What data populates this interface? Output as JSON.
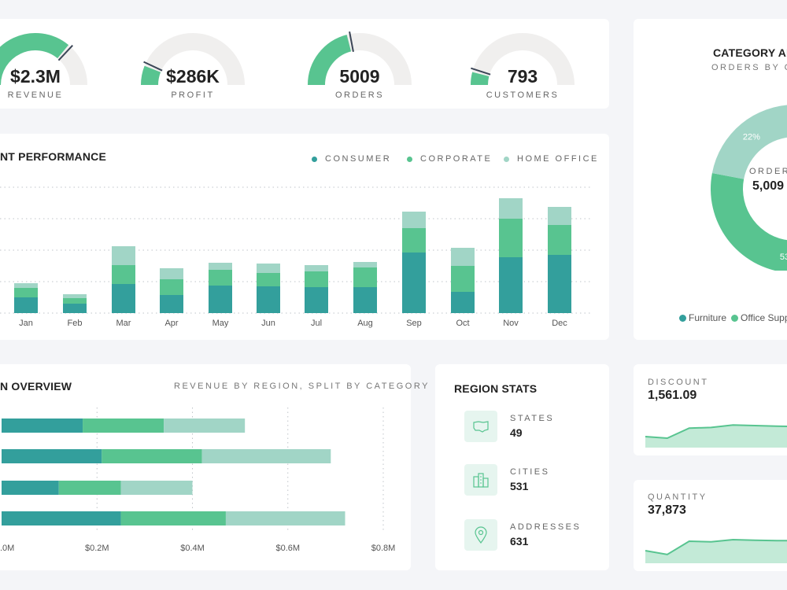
{
  "kpis": [
    {
      "value": "$2.3M",
      "label": "REVENUE",
      "fraction": 0.72
    },
    {
      "value": "$286K",
      "label": "PROFIT",
      "fraction": 0.12
    },
    {
      "value": "5009",
      "label": "ORDERS",
      "fraction": 0.42
    },
    {
      "value": "793",
      "label": "CUSTOMERS",
      "fraction": 0.08
    }
  ],
  "category": {
    "title": "CATEGORY AN",
    "subtitle": "ORDERS BY CA",
    "center_label": "ORDERS",
    "center_value": "5,009",
    "legend": [
      "Furniture",
      "Office Suppli"
    ]
  },
  "segment": {
    "title": "NT PERFORMANCE",
    "legend": [
      "CONSUMER",
      "CORPORATE",
      "HOME OFFICE"
    ]
  },
  "region": {
    "title": "N OVERVIEW",
    "subtitle": "REVENUE BY REGION,  SPLIT BY CATEGORY",
    "axis_ticks": [
      ".0M",
      "$0.2M",
      "$0.4M",
      "$0.6M",
      "$0.8M"
    ]
  },
  "region_stats": {
    "title": "REGION STATS",
    "items": [
      {
        "label": "STATES",
        "value": "49",
        "icon": "map-icon"
      },
      {
        "label": "CITIES",
        "value": "531",
        "icon": "buildings-icon"
      },
      {
        "label": "ADDRESSES",
        "value": "631",
        "icon": "location-pin-icon"
      }
    ]
  },
  "discount": {
    "label": "DISCOUNT",
    "value": "1,561.09",
    "trend": [
      0.35,
      0.3,
      0.62,
      0.64,
      0.72,
      0.7,
      0.68,
      0.67
    ]
  },
  "quantity": {
    "label": "QUANTITY",
    "value": "37,873",
    "trend": [
      0.4,
      0.28,
      0.7,
      0.68,
      0.75,
      0.73,
      0.72,
      0.72
    ]
  },
  "colors": {
    "consumer": "#339f9c",
    "corporate": "#58c490",
    "home_office": "#a1d5c6",
    "gauge_track": "#f0efee",
    "accent": "#58c490"
  },
  "chart_data": [
    {
      "type": "bar",
      "title": "NT PERFORMANCE",
      "stacked": true,
      "categories": [
        "Jan",
        "Feb",
        "Mar",
        "Apr",
        "May",
        "Jun",
        "Jul",
        "Aug",
        "Sep",
        "Oct",
        "Nov",
        "Dec"
      ],
      "series": [
        {
          "name": "CONSUMER",
          "values": [
            20,
            12,
            37,
            23,
            35,
            34,
            33,
            33,
            77,
            27,
            71,
            74
          ]
        },
        {
          "name": "CORPORATE",
          "values": [
            12,
            7,
            24,
            20,
            20,
            17,
            20,
            25,
            31,
            33,
            49,
            38
          ]
        },
        {
          "name": "HOME OFFICE",
          "values": [
            6,
            5,
            24,
            14,
            9,
            12,
            8,
            7,
            21,
            23,
            26,
            23
          ]
        }
      ],
      "ylim": [
        0,
        160
      ],
      "grid": true,
      "legend": "top-right"
    },
    {
      "type": "pie",
      "title": "CATEGORY AN",
      "labels": [
        "Furniture",
        "Office Suppli",
        ""
      ],
      "values": [
        25,
        53,
        22
      ],
      "data_labels": [
        "",
        "53%",
        "22%"
      ]
    },
    {
      "type": "bar",
      "orientation": "horizontal",
      "stacked": true,
      "title": "N OVERVIEW",
      "series": [
        {
          "name": "",
          "values": [
            0.17,
            0.21,
            0.12,
            0.25
          ]
        },
        {
          "name": "",
          "values": [
            0.17,
            0.21,
            0.13,
            0.22
          ]
        },
        {
          "name": "",
          "values": [
            0.17,
            0.27,
            0.15,
            0.25
          ]
        }
      ],
      "xlim": [
        0,
        0.8
      ],
      "grid": true
    }
  ]
}
